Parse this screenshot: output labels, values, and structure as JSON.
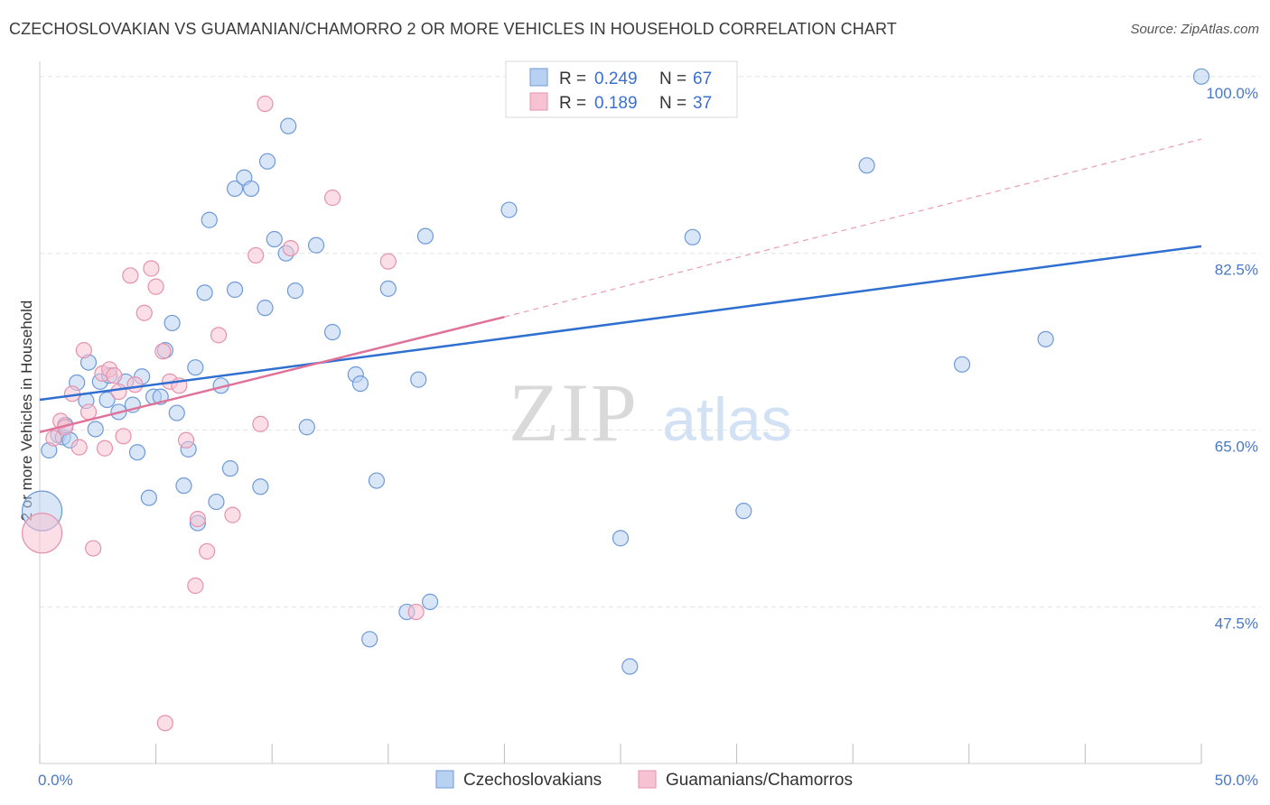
{
  "title": "CZECHOSLOVAKIAN VS GUAMANIAN/CHAMORRO 2 OR MORE VEHICLES IN HOUSEHOLD CORRELATION CHART",
  "source": "Source: ZipAtlas.com",
  "watermark": {
    "zip": "ZIP",
    "atlas": "atlas"
  },
  "colors": {
    "blue_fill": "#b8d1f3",
    "blue_stroke": "#6f9ad8",
    "blue_line": "#2f6fd0",
    "pink_fill": "#f7c2d2",
    "pink_stroke": "#e692ad",
    "pink_line": "#e0729a",
    "grid": "#e3e3e3",
    "tick_text": "#4a78c8"
  },
  "legend": {
    "rows": [
      {
        "r_label": "R =",
        "r_value": "0.249",
        "n_label": "N =",
        "n_value": "67"
      },
      {
        "r_label": "R =",
        "r_value": "0.189",
        "n_label": "N =",
        "n_value": "37"
      }
    ]
  },
  "bottom_legend": [
    "Czechoslovakians",
    "Guamanians/Chamorros"
  ],
  "chart_data": {
    "type": "scatter",
    "xlabel": "",
    "ylabel": "2 or more Vehicles in Household",
    "xlim": [
      0,
      50
    ],
    "ylim": [
      32,
      101.5
    ],
    "x_tick_labels": [
      "0.0%",
      "50.0%"
    ],
    "y_ticks": [
      47.5,
      65.0,
      82.5,
      100.0
    ],
    "y_tick_labels": [
      "47.5%",
      "65.0%",
      "82.5%",
      "100.0%"
    ],
    "grid": true,
    "legend_position": "top-center",
    "series": [
      {
        "name": "Czechoslovakians",
        "r": 0.249,
        "n": 67,
        "trend": {
          "x": [
            0,
            50
          ],
          "y": [
            68.0,
            83.2
          ],
          "style": "solid"
        },
        "points": [
          {
            "x": 0.1,
            "y": 57.0,
            "big": true
          },
          {
            "x": 0.4,
            "y": 63.0
          },
          {
            "x": 0.8,
            "y": 64.5
          },
          {
            "x": 1.0,
            "y": 64.3
          },
          {
            "x": 1.1,
            "y": 65.5
          },
          {
            "x": 1.3,
            "y": 64.0
          },
          {
            "x": 1.6,
            "y": 69.7
          },
          {
            "x": 2.0,
            "y": 67.9
          },
          {
            "x": 2.1,
            "y": 71.7
          },
          {
            "x": 2.4,
            "y": 65.1
          },
          {
            "x": 2.6,
            "y": 69.8
          },
          {
            "x": 2.9,
            "y": 68.0
          },
          {
            "x": 3.0,
            "y": 70.4
          },
          {
            "x": 3.4,
            "y": 66.8
          },
          {
            "x": 3.7,
            "y": 69.8
          },
          {
            "x": 4.0,
            "y": 67.5
          },
          {
            "x": 4.2,
            "y": 62.8
          },
          {
            "x": 4.4,
            "y": 70.3
          },
          {
            "x": 4.7,
            "y": 58.3
          },
          {
            "x": 4.9,
            "y": 68.3
          },
          {
            "x": 5.2,
            "y": 68.3
          },
          {
            "x": 5.4,
            "y": 72.9
          },
          {
            "x": 5.7,
            "y": 75.6
          },
          {
            "x": 5.9,
            "y": 66.7
          },
          {
            "x": 6.2,
            "y": 59.5
          },
          {
            "x": 6.4,
            "y": 63.1
          },
          {
            "x": 6.7,
            "y": 71.2
          },
          {
            "x": 6.8,
            "y": 55.8
          },
          {
            "x": 7.1,
            "y": 78.6
          },
          {
            "x": 7.3,
            "y": 85.8
          },
          {
            "x": 7.6,
            "y": 57.9
          },
          {
            "x": 7.8,
            "y": 69.4
          },
          {
            "x": 8.2,
            "y": 61.2
          },
          {
            "x": 8.4,
            "y": 78.9
          },
          {
            "x": 8.4,
            "y": 88.9
          },
          {
            "x": 8.8,
            "y": 90.0
          },
          {
            "x": 9.1,
            "y": 88.9
          },
          {
            "x": 9.5,
            "y": 59.4
          },
          {
            "x": 9.7,
            "y": 77.1
          },
          {
            "x": 9.8,
            "y": 91.6
          },
          {
            "x": 10.1,
            "y": 83.9
          },
          {
            "x": 10.6,
            "y": 82.5
          },
          {
            "x": 10.7,
            "y": 95.1
          },
          {
            "x": 11.0,
            "y": 78.8
          },
          {
            "x": 11.5,
            "y": 65.3
          },
          {
            "x": 11.9,
            "y": 83.3
          },
          {
            "x": 12.6,
            "y": 74.7
          },
          {
            "x": 13.6,
            "y": 70.5
          },
          {
            "x": 13.8,
            "y": 69.6
          },
          {
            "x": 14.2,
            "y": 44.3
          },
          {
            "x": 14.5,
            "y": 60.0
          },
          {
            "x": 15.0,
            "y": 79.0
          },
          {
            "x": 15.8,
            "y": 47.0
          },
          {
            "x": 16.3,
            "y": 70.0
          },
          {
            "x": 16.6,
            "y": 84.2
          },
          {
            "x": 16.8,
            "y": 48.0
          },
          {
            "x": 20.2,
            "y": 86.8
          },
          {
            "x": 25.0,
            "y": 54.3
          },
          {
            "x": 25.4,
            "y": 41.6
          },
          {
            "x": 26.0,
            "y": 100.0
          },
          {
            "x": 28.1,
            "y": 84.1
          },
          {
            "x": 30.3,
            "y": 57.0
          },
          {
            "x": 35.6,
            "y": 91.2
          },
          {
            "x": 39.7,
            "y": 71.5
          },
          {
            "x": 43.3,
            "y": 74.0
          },
          {
            "x": 50.0,
            "y": 100.0
          },
          {
            "x": 23.3,
            "y": 100.3
          }
        ]
      },
      {
        "name": "Guamanians/Chamorros",
        "r": 0.189,
        "n": 37,
        "trend": {
          "x": [
            0,
            20
          ],
          "y": [
            64.8,
            76.2
          ],
          "style": "solid",
          "extension": {
            "x": [
              20,
              50
            ],
            "y": [
              76.2,
              93.8
            ],
            "style": "dashed"
          }
        },
        "points": [
          {
            "x": 0.1,
            "y": 54.8,
            "big": true
          },
          {
            "x": 0.6,
            "y": 64.2
          },
          {
            "x": 0.9,
            "y": 65.9
          },
          {
            "x": 1.1,
            "y": 65.3
          },
          {
            "x": 1.4,
            "y": 68.6
          },
          {
            "x": 1.7,
            "y": 63.3
          },
          {
            "x": 1.9,
            "y": 72.9
          },
          {
            "x": 2.1,
            "y": 66.8
          },
          {
            "x": 2.3,
            "y": 53.3
          },
          {
            "x": 2.7,
            "y": 70.6
          },
          {
            "x": 2.8,
            "y": 63.2
          },
          {
            "x": 3.0,
            "y": 71.0
          },
          {
            "x": 3.2,
            "y": 70.4
          },
          {
            "x": 3.4,
            "y": 68.8
          },
          {
            "x": 3.6,
            "y": 64.4
          },
          {
            "x": 3.9,
            "y": 80.3
          },
          {
            "x": 4.1,
            "y": 69.5
          },
          {
            "x": 4.5,
            "y": 76.6
          },
          {
            "x": 4.8,
            "y": 81.0
          },
          {
            "x": 5.0,
            "y": 79.2
          },
          {
            "x": 5.3,
            "y": 72.8
          },
          {
            "x": 5.4,
            "y": 36.0
          },
          {
            "x": 5.6,
            "y": 69.8
          },
          {
            "x": 6.0,
            "y": 69.4
          },
          {
            "x": 6.3,
            "y": 64.0
          },
          {
            "x": 6.7,
            "y": 49.6
          },
          {
            "x": 6.8,
            "y": 56.2
          },
          {
            "x": 7.2,
            "y": 53.0
          },
          {
            "x": 7.7,
            "y": 74.4
          },
          {
            "x": 8.3,
            "y": 56.6
          },
          {
            "x": 9.3,
            "y": 82.3
          },
          {
            "x": 9.5,
            "y": 65.6
          },
          {
            "x": 9.7,
            "y": 97.3
          },
          {
            "x": 10.8,
            "y": 83.0
          },
          {
            "x": 12.6,
            "y": 88.0
          },
          {
            "x": 15.0,
            "y": 81.7
          },
          {
            "x": 16.2,
            "y": 47.0
          }
        ]
      }
    ]
  }
}
